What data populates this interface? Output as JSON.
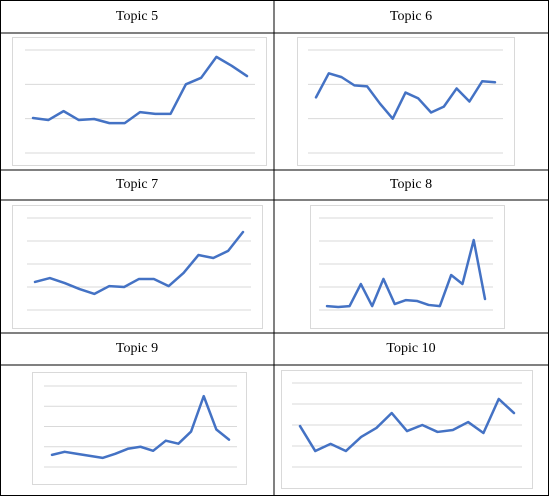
{
  "chart_data": [
    {
      "type": "line",
      "title": "Topic 5",
      "color": "#4472c4",
      "ylim": [
        0,
        3
      ],
      "yticks": [
        0,
        1,
        2,
        3
      ],
      "grid": true,
      "values": [
        1.02,
        0.96,
        1.22,
        0.96,
        0.99,
        0.87,
        0.87,
        1.19,
        1.14,
        1.14,
        2.0,
        2.19,
        2.8,
        2.54,
        2.24
      ]
    },
    {
      "type": "line",
      "title": "Topic 6",
      "color": "#4472c4",
      "ylim": [
        0,
        3
      ],
      "yticks": [
        0,
        1,
        2,
        3
      ],
      "grid": true,
      "values": [
        1.62,
        2.32,
        2.21,
        1.97,
        1.94,
        1.44,
        1.0,
        1.76,
        1.59,
        1.18,
        1.35,
        1.88,
        1.5,
        2.09,
        2.06
      ]
    },
    {
      "type": "line",
      "title": "Topic 7",
      "color": "#4472c4",
      "ylim": [
        0,
        4
      ],
      "yticks": [
        0,
        1,
        2,
        3,
        4
      ],
      "grid": true,
      "values": [
        1.22,
        1.39,
        1.17,
        0.91,
        0.7,
        1.04,
        1.0,
        1.35,
        1.35,
        1.04,
        1.61,
        2.39,
        2.26,
        2.57,
        3.39
      ]
    },
    {
      "type": "line",
      "title": "Topic 8",
      "color": "#4472c4",
      "ylim": [
        0,
        4
      ],
      "yticks": [
        0,
        1,
        2,
        3,
        4
      ],
      "grid": true,
      "values": [
        0.17,
        0.13,
        0.17,
        1.13,
        0.17,
        1.35,
        0.26,
        0.43,
        0.39,
        0.22,
        0.17,
        1.52,
        1.13,
        3.04,
        0.48
      ]
    },
    {
      "type": "line",
      "title": "Topic 9",
      "color": "#4472c4",
      "ylim": [
        0,
        4
      ],
      "yticks": [
        0,
        1,
        2,
        3,
        4
      ],
      "grid": true,
      "values": [
        0.6,
        0.75,
        0.65,
        0.55,
        0.45,
        0.65,
        0.9,
        1.0,
        0.8,
        1.3,
        1.15,
        1.75,
        3.5,
        1.85,
        1.35
      ]
    },
    {
      "type": "line",
      "title": "Topic 10",
      "color": "#4472c4",
      "ylim": [
        0,
        4
      ],
      "yticks": [
        0,
        1,
        2,
        3,
        4
      ],
      "grid": true,
      "values": [
        1.95,
        0.76,
        1.1,
        0.76,
        1.43,
        1.86,
        2.57,
        1.71,
        2.0,
        1.67,
        1.76,
        2.14,
        1.62,
        3.24,
        2.57
      ]
    }
  ]
}
